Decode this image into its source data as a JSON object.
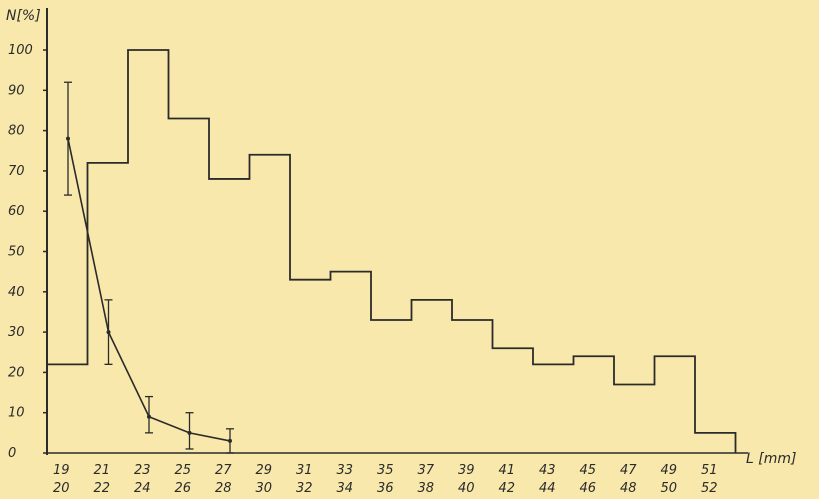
{
  "chart_data": {
    "type": "bar",
    "title": "",
    "xlabel": "L [mm]",
    "ylabel": "N[%]",
    "ylim": [
      0,
      100
    ],
    "yticks": [
      "0",
      "10",
      "20",
      "30",
      "40",
      "50",
      "60",
      "70",
      "80",
      "90",
      "100"
    ],
    "grid": false,
    "legend": "none",
    "categories": [
      {
        "top": "19",
        "bottom": "20"
      },
      {
        "top": "21",
        "bottom": "22"
      },
      {
        "top": "23",
        "bottom": "24"
      },
      {
        "top": "25",
        "bottom": "26"
      },
      {
        "top": "27",
        "bottom": "28"
      },
      {
        "top": "29",
        "bottom": "30"
      },
      {
        "top": "31",
        "bottom": "32"
      },
      {
        "top": "33",
        "bottom": "34"
      },
      {
        "top": "35",
        "bottom": "36"
      },
      {
        "top": "37",
        "bottom": "38"
      },
      {
        "top": "39",
        "bottom": "40"
      },
      {
        "top": "41",
        "bottom": "42"
      },
      {
        "top": "43",
        "bottom": "44"
      },
      {
        "top": "45",
        "bottom": "46"
      },
      {
        "top": "47",
        "bottom": "48"
      },
      {
        "top": "49",
        "bottom": "50"
      },
      {
        "top": "51",
        "bottom": "52"
      }
    ],
    "series": [
      {
        "kind": "histogram-step",
        "values": [
          22,
          72,
          100,
          83,
          68,
          74,
          43,
          45,
          33,
          38,
          33,
          26,
          22,
          24,
          17,
          24,
          5
        ]
      },
      {
        "kind": "line-with-error-bars",
        "points": [
          {
            "category_index": 0,
            "y": 78,
            "ylow": 64,
            "yhigh": 92
          },
          {
            "category_index": 1,
            "y": 30,
            "ylow": 22,
            "yhigh": 38
          },
          {
            "category_index": 2,
            "y": 9,
            "ylow": 5,
            "yhigh": 14
          },
          {
            "category_index": 3,
            "y": 5,
            "ylow": 1,
            "yhigh": 10
          },
          {
            "category_index": 4,
            "y": 3,
            "ylow": 0,
            "yhigh": 6
          }
        ]
      }
    ]
  }
}
